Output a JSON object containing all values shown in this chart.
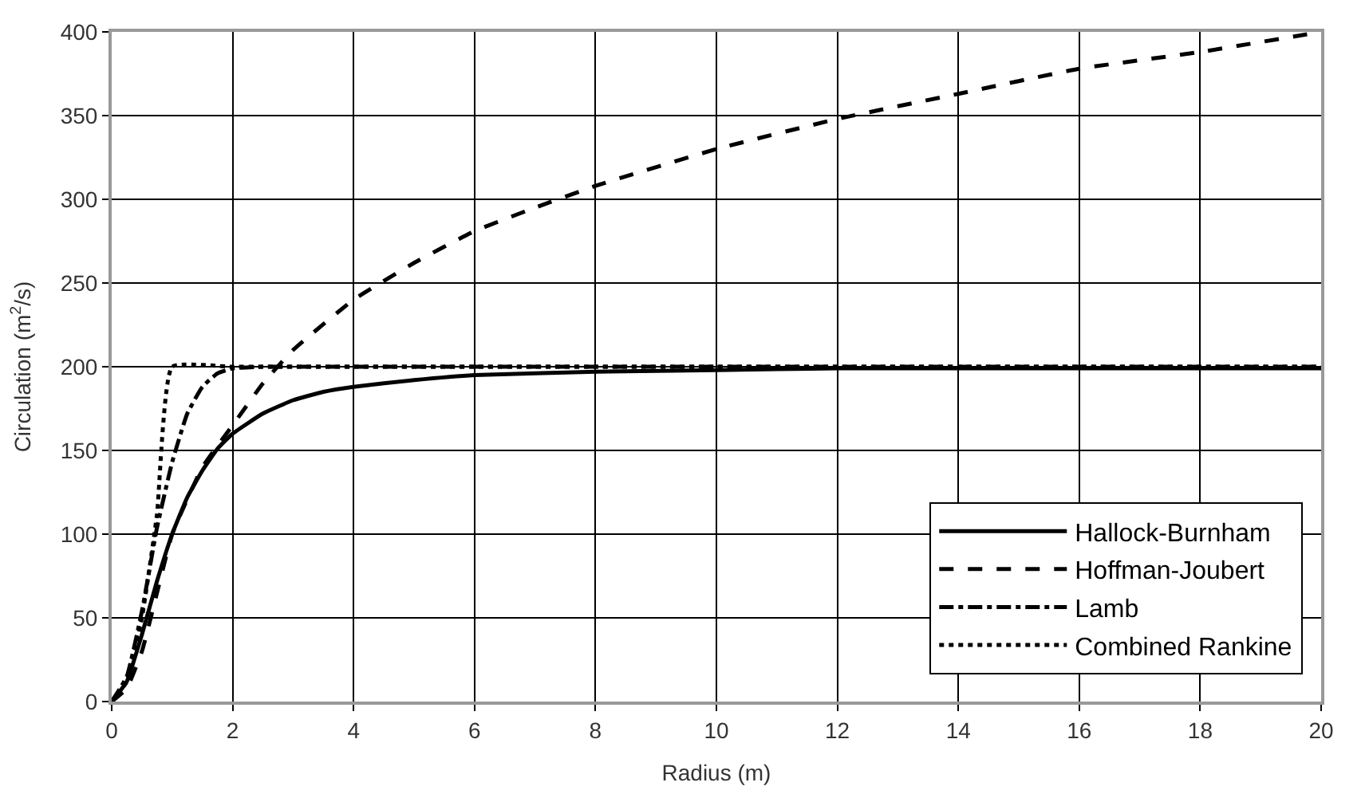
{
  "chart_data": {
    "type": "line",
    "xlabel": "Radius (m)",
    "ylabel": "Circulation (m$^{2}$/s)",
    "xlim": [
      0,
      20
    ],
    "ylim": [
      0,
      400
    ],
    "xticks": [
      0,
      2,
      4,
      6,
      8,
      10,
      12,
      14,
      16,
      18,
      20
    ],
    "yticks": [
      0,
      50,
      100,
      150,
      200,
      250,
      300,
      350,
      400
    ],
    "grid": true,
    "legend": "bottom right",
    "marker": "none",
    "series": [
      {
        "name": "Hallock-Burnham",
        "color": "#000000",
        "line_style": "solid",
        "x": [
          0,
          0.25,
          0.5,
          0.75,
          1,
          1.25,
          1.5,
          1.75,
          2,
          2.5,
          3,
          3.5,
          4,
          5,
          6,
          8,
          10,
          12,
          14,
          16,
          18,
          20
        ],
        "values": [
          0,
          12,
          40,
          72,
          100,
          122,
          138,
          151,
          160,
          172,
          180,
          185,
          188,
          192,
          195,
          197,
          198,
          199,
          199,
          199,
          199,
          199
        ]
      },
      {
        "name": "Hoffman-Joubert",
        "color": "#000000",
        "line_style": "dashed",
        "x": [
          0,
          0.25,
          0.5,
          0.75,
          1,
          1.5,
          2,
          2.5,
          3,
          4,
          5,
          6,
          7,
          8,
          10,
          12,
          14,
          16,
          18,
          20
        ],
        "values": [
          0,
          8,
          30,
          65,
          100,
          140,
          165,
          190,
          210,
          240,
          262,
          281,
          295,
          308,
          330,
          348,
          363,
          378,
          388,
          400
        ]
      },
      {
        "name": "Lamb",
        "color": "#000000",
        "line_style": "dashdot",
        "x": [
          0,
          0.25,
          0.5,
          0.75,
          1,
          1.25,
          1.5,
          1.75,
          2,
          2.5,
          3,
          4,
          6,
          8,
          10,
          12,
          14,
          16,
          18,
          20
        ],
        "values": [
          0,
          15,
          54,
          104,
          143,
          172,
          188,
          196,
          199,
          200,
          200,
          200,
          200,
          200,
          200,
          200,
          200,
          200,
          200,
          200
        ]
      },
      {
        "name": "Combined Rankine",
        "color": "#000000",
        "line_style": "dotted",
        "x": [
          0,
          0.25,
          0.5,
          0.75,
          1,
          2,
          4,
          6,
          8,
          10,
          12,
          14,
          16,
          18,
          20
        ],
        "values": [
          0,
          12,
          50,
          112,
          200,
          200,
          200,
          200,
          200,
          200,
          200,
          200,
          200,
          200,
          200
        ]
      }
    ]
  }
}
